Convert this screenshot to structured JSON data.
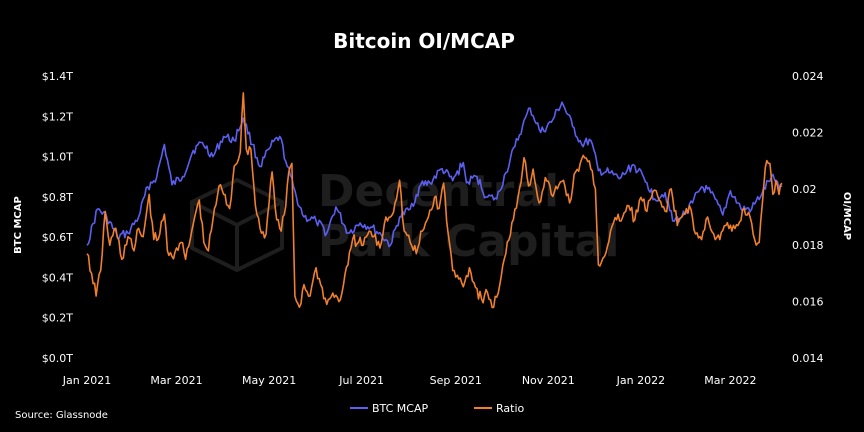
{
  "chart_data": {
    "type": "line",
    "title": "Bitcoin OI/MCAP",
    "source": "Source: Glassnode",
    "watermark": [
      "Decentral",
      "Park Capital"
    ],
    "x_ticks": [
      "Jan 2021",
      "Mar 2021",
      "May 2021",
      "Jul 2021",
      "Sep 2021",
      "Nov 2021",
      "Jan 2022",
      "Mar 2022"
    ],
    "x_range": [
      "2021-01-01",
      "2022-04-04"
    ],
    "y_left": {
      "label": "BTC MCAP",
      "ticks": [
        "$0.0T",
        "$0.2T",
        "$0.4T",
        "$0.6T",
        "$0.8T",
        "$1.0T",
        "$1.2T",
        "$1.4T"
      ],
      "range": [
        0,
        1.4
      ],
      "unit": "T USD"
    },
    "y_right": {
      "label": "OI/MCAP",
      "ticks": [
        "0.014",
        "0.016",
        "0.018",
        "0.02",
        "0.022",
        "0.024"
      ],
      "range": [
        0.014,
        0.024
      ]
    },
    "legend_position": "bottom-center",
    "grid": false,
    "series": [
      {
        "name": "BTC MCAP",
        "axis": "left",
        "color": "#5b5ff0",
        "points": [
          [
            "2021-01-01",
            0.56
          ],
          [
            "2021-01-08",
            0.74
          ],
          [
            "2021-01-14",
            0.7
          ],
          [
            "2021-01-21",
            0.6
          ],
          [
            "2021-01-28",
            0.62
          ],
          [
            "2021-02-04",
            0.7
          ],
          [
            "2021-02-10",
            0.85
          ],
          [
            "2021-02-16",
            0.9
          ],
          [
            "2021-02-21",
            1.06
          ],
          [
            "2021-02-26",
            0.86
          ],
          [
            "2021-03-05",
            0.9
          ],
          [
            "2021-03-12",
            1.03
          ],
          [
            "2021-03-18",
            1.07
          ],
          [
            "2021-03-25",
            1.0
          ],
          [
            "2021-04-01",
            1.1
          ],
          [
            "2021-04-08",
            1.08
          ],
          [
            "2021-04-14",
            1.19
          ],
          [
            "2021-04-20",
            1.06
          ],
          [
            "2021-04-25",
            0.95
          ],
          [
            "2021-05-02",
            1.05
          ],
          [
            "2021-05-08",
            1.1
          ],
          [
            "2021-05-13",
            0.95
          ],
          [
            "2021-05-19",
            0.8
          ],
          [
            "2021-05-24",
            0.7
          ],
          [
            "2021-06-01",
            0.68
          ],
          [
            "2021-06-08",
            0.62
          ],
          [
            "2021-06-14",
            0.75
          ],
          [
            "2021-06-22",
            0.62
          ],
          [
            "2021-06-30",
            0.67
          ],
          [
            "2021-07-07",
            0.65
          ],
          [
            "2021-07-14",
            0.61
          ],
          [
            "2021-07-20",
            0.56
          ],
          [
            "2021-07-26",
            0.7
          ],
          [
            "2021-08-02",
            0.74
          ],
          [
            "2021-08-09",
            0.86
          ],
          [
            "2021-08-15",
            0.87
          ],
          [
            "2021-08-23",
            0.94
          ],
          [
            "2021-08-30",
            0.88
          ],
          [
            "2021-09-06",
            0.97
          ],
          [
            "2021-09-08",
            0.87
          ],
          [
            "2021-09-15",
            0.9
          ],
          [
            "2021-09-21",
            0.8
          ],
          [
            "2021-09-28",
            0.79
          ],
          [
            "2021-10-04",
            0.92
          ],
          [
            "2021-10-10",
            1.05
          ],
          [
            "2021-10-15",
            1.15
          ],
          [
            "2021-10-20",
            1.24
          ],
          [
            "2021-10-27",
            1.12
          ],
          [
            "2021-11-03",
            1.17
          ],
          [
            "2021-11-10",
            1.27
          ],
          [
            "2021-11-17",
            1.15
          ],
          [
            "2021-11-23",
            1.06
          ],
          [
            "2021-11-29",
            1.08
          ],
          [
            "2021-12-04",
            0.93
          ],
          [
            "2021-12-11",
            0.92
          ],
          [
            "2021-12-18",
            0.89
          ],
          [
            "2021-12-27",
            0.96
          ],
          [
            "2022-01-05",
            0.87
          ],
          [
            "2022-01-10",
            0.79
          ],
          [
            "2022-01-17",
            0.82
          ],
          [
            "2022-01-22",
            0.68
          ],
          [
            "2022-01-28",
            0.7
          ],
          [
            "2022-02-04",
            0.77
          ],
          [
            "2022-02-10",
            0.85
          ],
          [
            "2022-02-16",
            0.82
          ],
          [
            "2022-02-24",
            0.71
          ],
          [
            "2022-03-01",
            0.83
          ],
          [
            "2022-03-08",
            0.74
          ],
          [
            "2022-03-15",
            0.74
          ],
          [
            "2022-03-22",
            0.82
          ],
          [
            "2022-03-28",
            0.9
          ],
          [
            "2022-03-31",
            0.87
          ],
          [
            "2022-04-04",
            0.85
          ]
        ]
      },
      {
        "name": "Ratio",
        "axis": "right",
        "color": "#f07f2e",
        "points": [
          [
            "2021-01-01",
            0.0177
          ],
          [
            "2021-01-04",
            0.017
          ],
          [
            "2021-01-07",
            0.0162
          ],
          [
            "2021-01-10",
            0.0171
          ],
          [
            "2021-01-13",
            0.0192
          ],
          [
            "2021-01-16",
            0.018
          ],
          [
            "2021-01-20",
            0.0186
          ],
          [
            "2021-01-24",
            0.0175
          ],
          [
            "2021-01-28",
            0.0183
          ],
          [
            "2021-02-01",
            0.0178
          ],
          [
            "2021-02-04",
            0.0186
          ],
          [
            "2021-02-07",
            0.0183
          ],
          [
            "2021-02-11",
            0.0198
          ],
          [
            "2021-02-14",
            0.0182
          ],
          [
            "2021-02-18",
            0.0184
          ],
          [
            "2021-02-21",
            0.0191
          ],
          [
            "2021-02-23",
            0.0178
          ],
          [
            "2021-02-26",
            0.0176
          ],
          [
            "2021-03-01",
            0.0179
          ],
          [
            "2021-03-04",
            0.0181
          ],
          [
            "2021-03-07",
            0.0175
          ],
          [
            "2021-03-10",
            0.0182
          ],
          [
            "2021-03-13",
            0.019
          ],
          [
            "2021-03-16",
            0.0196
          ],
          [
            "2021-03-19",
            0.0181
          ],
          [
            "2021-03-22",
            0.0178
          ],
          [
            "2021-03-25",
            0.0189
          ],
          [
            "2021-03-29",
            0.0201
          ],
          [
            "2021-04-01",
            0.0198
          ],
          [
            "2021-04-05",
            0.0193
          ],
          [
            "2021-04-08",
            0.0208
          ],
          [
            "2021-04-12",
            0.0213
          ],
          [
            "2021-04-14",
            0.0234
          ],
          [
            "2021-04-16",
            0.0214
          ],
          [
            "2021-04-19",
            0.0214
          ],
          [
            "2021-04-22",
            0.0194
          ],
          [
            "2021-04-25",
            0.0186
          ],
          [
            "2021-04-29",
            0.0184
          ],
          [
            "2021-05-03",
            0.0206
          ],
          [
            "2021-05-06",
            0.0189
          ],
          [
            "2021-05-09",
            0.0185
          ],
          [
            "2021-05-12",
            0.0194
          ],
          [
            "2021-05-14",
            0.0206
          ],
          [
            "2021-05-16",
            0.0209
          ],
          [
            "2021-05-18",
            0.0162
          ],
          [
            "2021-05-21",
            0.0158
          ],
          [
            "2021-05-24",
            0.0166
          ],
          [
            "2021-05-28",
            0.0162
          ],
          [
            "2021-06-01",
            0.0172
          ],
          [
            "2021-06-04",
            0.0166
          ],
          [
            "2021-06-08",
            0.0159
          ],
          [
            "2021-06-12",
            0.0163
          ],
          [
            "2021-06-16",
            0.016
          ],
          [
            "2021-06-19",
            0.0166
          ],
          [
            "2021-06-22",
            0.0173
          ],
          [
            "2021-06-25",
            0.0182
          ],
          [
            "2021-06-29",
            0.0181
          ],
          [
            "2021-07-02",
            0.018
          ],
          [
            "2021-07-06",
            0.0185
          ],
          [
            "2021-07-09",
            0.0183
          ],
          [
            "2021-07-13",
            0.0179
          ],
          [
            "2021-07-17",
            0.019
          ],
          [
            "2021-07-20",
            0.019
          ],
          [
            "2021-07-23",
            0.0195
          ],
          [
            "2021-07-26",
            0.0203
          ],
          [
            "2021-07-29",
            0.0185
          ],
          [
            "2021-08-02",
            0.0181
          ],
          [
            "2021-08-06",
            0.0177
          ],
          [
            "2021-08-10",
            0.0185
          ],
          [
            "2021-08-14",
            0.019
          ],
          [
            "2021-08-18",
            0.0197
          ],
          [
            "2021-08-21",
            0.0193
          ],
          [
            "2021-08-24",
            0.0202
          ],
          [
            "2021-08-27",
            0.0184
          ],
          [
            "2021-08-30",
            0.0171
          ],
          [
            "2021-09-03",
            0.0168
          ],
          [
            "2021-09-07",
            0.0167
          ],
          [
            "2021-09-10",
            0.0172
          ],
          [
            "2021-09-14",
            0.0165
          ],
          [
            "2021-09-18",
            0.0161
          ],
          [
            "2021-09-22",
            0.0163
          ],
          [
            "2021-09-26",
            0.0158
          ],
          [
            "2021-09-30",
            0.0166
          ],
          [
            "2021-10-04",
            0.0177
          ],
          [
            "2021-10-08",
            0.0188
          ],
          [
            "2021-10-12",
            0.0197
          ],
          [
            "2021-10-16",
            0.0211
          ],
          [
            "2021-10-19",
            0.0201
          ],
          [
            "2021-10-22",
            0.0207
          ],
          [
            "2021-10-26",
            0.0195
          ],
          [
            "2021-10-30",
            0.0204
          ],
          [
            "2021-11-03",
            0.0198
          ],
          [
            "2021-11-07",
            0.02
          ],
          [
            "2021-11-11",
            0.0203
          ],
          [
            "2021-11-15",
            0.0195
          ],
          [
            "2021-11-19",
            0.0206
          ],
          [
            "2021-11-22",
            0.0209
          ],
          [
            "2021-11-25",
            0.0211
          ],
          [
            "2021-11-29",
            0.0207
          ],
          [
            "2021-12-02",
            0.02
          ],
          [
            "2021-12-04",
            0.0173
          ],
          [
            "2021-12-08",
            0.0176
          ],
          [
            "2021-12-12",
            0.0185
          ],
          [
            "2021-12-16",
            0.0189
          ],
          [
            "2021-12-20",
            0.019
          ],
          [
            "2021-12-24",
            0.0194
          ],
          [
            "2021-12-28",
            0.0189
          ],
          [
            "2022-01-01",
            0.0197
          ],
          [
            "2022-01-05",
            0.0192
          ],
          [
            "2022-01-09",
            0.0199
          ],
          [
            "2022-01-13",
            0.0196
          ],
          [
            "2022-01-17",
            0.0192
          ],
          [
            "2022-01-21",
            0.02
          ],
          [
            "2022-01-25",
            0.0187
          ],
          [
            "2022-01-29",
            0.0191
          ],
          [
            "2022-02-02",
            0.0194
          ],
          [
            "2022-02-06",
            0.0184
          ],
          [
            "2022-02-10",
            0.0182
          ],
          [
            "2022-02-14",
            0.019
          ],
          [
            "2022-02-18",
            0.0184
          ],
          [
            "2022-02-22",
            0.0182
          ],
          [
            "2022-02-26",
            0.0187
          ],
          [
            "2022-03-02",
            0.0185
          ],
          [
            "2022-03-06",
            0.0187
          ],
          [
            "2022-03-10",
            0.0193
          ],
          [
            "2022-03-14",
            0.019
          ],
          [
            "2022-03-17",
            0.0182
          ],
          [
            "2022-03-20",
            0.0181
          ],
          [
            "2022-03-23",
            0.0201
          ],
          [
            "2022-03-25",
            0.021
          ],
          [
            "2022-03-27",
            0.0209
          ],
          [
            "2022-03-29",
            0.0198
          ],
          [
            "2022-03-31",
            0.0203
          ],
          [
            "2022-04-02",
            0.0198
          ],
          [
            "2022-04-04",
            0.0202
          ]
        ]
      }
    ]
  }
}
